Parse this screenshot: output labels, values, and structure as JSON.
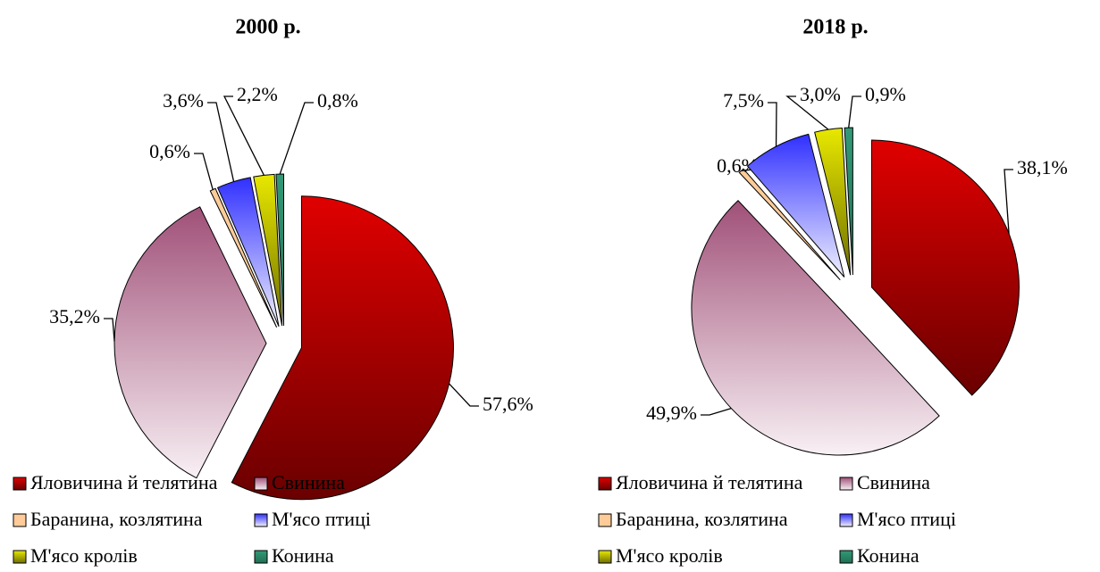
{
  "chart_data": [
    {
      "type": "pie",
      "title": "2000 р.",
      "categories": [
        "Яловичина й телятина",
        "Свинина",
        "Баранина, козлятина",
        "М'ясо птиці",
        "М'ясо кролів",
        "Конина"
      ],
      "values": [
        57.6,
        35.2,
        0.6,
        3.6,
        2.2,
        0.8
      ],
      "value_labels": [
        "57,6%",
        "35,2%",
        "0,6%",
        "3,6%",
        "2,2%",
        "0,8%"
      ],
      "colors": [
        "#e00000",
        "#a05078",
        "#ffcc99",
        "#3030ff",
        "#e8e800",
        "#339977"
      ]
    },
    {
      "type": "pie",
      "title": "2018 р.",
      "categories": [
        "Яловичина й телятина",
        "Свинина",
        "Баранина, козлятина",
        "М'ясо птиці",
        "М'ясо кролів",
        "Конина"
      ],
      "values": [
        38.1,
        49.9,
        0.6,
        7.5,
        3.0,
        0.9
      ],
      "value_labels": [
        "38,1%",
        "49,9%",
        "0,6%",
        "7,5%",
        "3,0%",
        "0,9%"
      ],
      "colors": [
        "#e00000",
        "#a05078",
        "#ffcc99",
        "#3030ff",
        "#e8e800",
        "#339977"
      ]
    }
  ]
}
